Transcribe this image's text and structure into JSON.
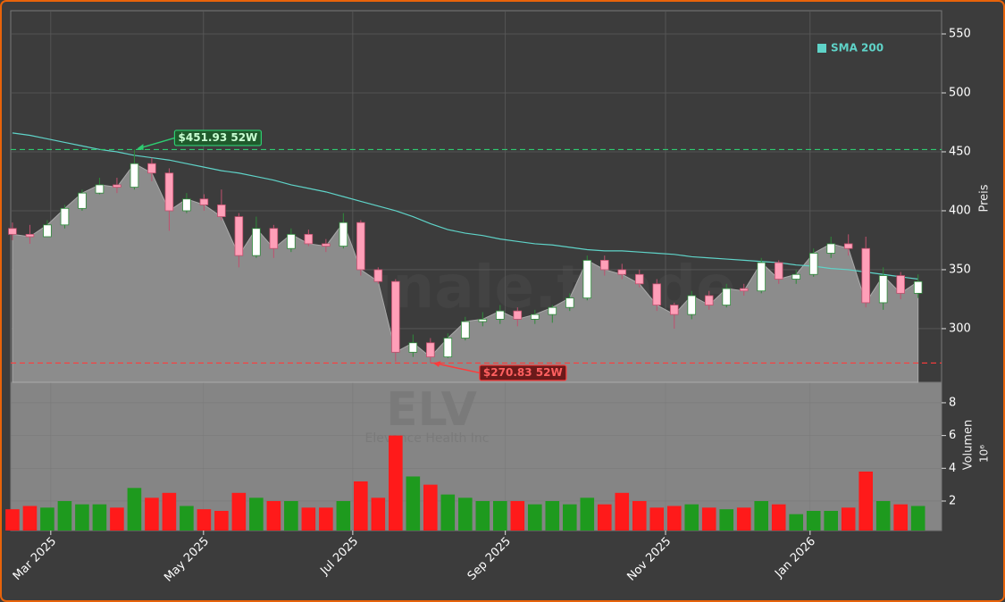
{
  "chart_data": {
    "type": "candlestick",
    "categories": [
      null,
      null,
      null,
      null,
      null,
      null,
      null,
      null,
      null,
      null,
      null,
      null,
      null,
      null,
      null,
      null,
      null,
      null,
      null,
      null,
      null,
      null,
      null,
      null,
      null,
      null,
      null,
      null,
      null,
      null,
      null,
      null,
      null,
      null,
      null,
      null,
      null,
      null,
      null,
      null,
      null,
      null,
      null,
      null,
      null,
      null,
      null,
      null,
      null,
      null,
      null,
      null,
      null
    ],
    "open": [
      385,
      380,
      378,
      388,
      402,
      415,
      422,
      420,
      440,
      432,
      400,
      410,
      405,
      395,
      362,
      385,
      368,
      380,
      372,
      370,
      390,
      350,
      340,
      280,
      288,
      276,
      292,
      306,
      308,
      315,
      308,
      312,
      318,
      326,
      358,
      350,
      346,
      338,
      320,
      312,
      328,
      320,
      334,
      332,
      356,
      342,
      346,
      364,
      372,
      368,
      322,
      345,
      330
    ],
    "high": [
      390,
      388,
      392,
      405,
      418,
      428,
      428,
      451.93,
      445,
      436,
      415,
      414,
      418,
      398,
      395,
      388,
      385,
      384,
      376,
      398,
      392,
      352,
      342,
      295,
      292,
      296,
      310,
      314,
      320,
      318,
      316,
      320,
      330,
      362,
      362,
      355,
      350,
      342,
      322,
      332,
      332,
      338,
      338,
      360,
      358,
      350,
      368,
      378,
      380,
      378,
      352,
      348,
      346
    ],
    "low": [
      375,
      372,
      378,
      385,
      400,
      414,
      415,
      418,
      425,
      383,
      398,
      400,
      392,
      352,
      360,
      360,
      365,
      370,
      365,
      368,
      345,
      338,
      272,
      276,
      270.83,
      275,
      290,
      302,
      304,
      302,
      304,
      305,
      315,
      324,
      345,
      342,
      335,
      315,
      300,
      308,
      316,
      318,
      328,
      330,
      338,
      338,
      344,
      360,
      362,
      318,
      316,
      325,
      326
    ],
    "close": [
      380,
      378,
      388,
      402,
      415,
      422,
      420,
      440,
      432,
      400,
      410,
      405,
      395,
      362,
      385,
      368,
      380,
      372,
      370,
      390,
      350,
      340,
      280,
      288,
      276,
      292,
      306,
      308,
      315,
      308,
      312,
      318,
      326,
      358,
      350,
      346,
      338,
      320,
      312,
      328,
      320,
      334,
      332,
      356,
      342,
      346,
      364,
      372,
      368,
      322,
      345,
      330,
      340
    ],
    "volume": [
      1.5,
      1.7,
      1.6,
      2.0,
      1.8,
      1.8,
      1.6,
      2.8,
      2.2,
      2.5,
      1.7,
      1.5,
      1.4,
      2.5,
      2.2,
      2.0,
      2.0,
      1.6,
      1.6,
      2.0,
      3.2,
      2.2,
      6.0,
      3.5,
      3.0,
      2.4,
      2.2,
      2.0,
      2.0,
      2.0,
      1.8,
      2.0,
      1.8,
      2.2,
      1.8,
      2.5,
      2.0,
      1.6,
      1.7,
      1.8,
      1.6,
      1.5,
      1.6,
      2.0,
      1.8,
      1.2,
      1.4,
      1.4,
      1.6,
      3.8,
      2.0,
      1.8,
      1.7
    ],
    "up_color": "#ffffff",
    "down_color": "#ff9fb8",
    "volume_up_color": "#1e9a1e",
    "volume_down_color": "#ff1a1a",
    "area_color": "#8c8c8c",
    "sma": {
      "name": "SMA 200",
      "color": "#5fd3c8",
      "values": [
        466,
        464,
        461,
        458,
        455,
        452,
        450,
        447,
        445,
        443,
        440,
        437,
        434,
        432,
        429,
        426,
        422,
        419,
        416,
        412,
        408,
        404,
        400,
        395,
        389,
        384,
        381,
        379,
        376,
        374,
        372,
        371,
        369,
        367,
        366,
        366,
        365,
        364,
        363,
        361,
        360,
        359,
        358,
        357,
        356,
        354,
        353,
        351,
        350,
        348,
        346,
        344,
        342
      ]
    },
    "legend": "upper right",
    "annotations": [
      {
        "value": 451.93,
        "label": "$451.93 52W",
        "color": "#2ecc71"
      },
      {
        "value": 270.83,
        "label": "$270.83 52W",
        "color": "#ff3b3b"
      }
    ],
    "xlim": [
      -0.1,
      53.35
    ],
    "xticks": [
      {
        "value": 2.2,
        "label": "Mar 2025"
      },
      {
        "value": 10.97,
        "label": "May 2025"
      },
      {
        "value": 19.54,
        "label": "Jul 2025"
      },
      {
        "value": 28.3,
        "label": "Sep 2025"
      },
      {
        "value": 37.5,
        "label": "Nov 2025"
      },
      {
        "value": 45.8,
        "label": "Jan 2026"
      }
    ],
    "ylim": [
      254.5,
      569.7
    ],
    "yticks": [
      300,
      350,
      400,
      450,
      500,
      550
    ],
    "ylabel": "Preis",
    "volume_ylim": [
      0.2,
      9.25
    ],
    "volume_yticks": [
      2,
      4,
      6,
      8
    ],
    "volume_label": "Volumen",
    "volume_scale_label": "10⁶",
    "grid": true,
    "watermark": "forexsignale.trade",
    "ticker": "ELV",
    "company": "Elevance Health Inc"
  }
}
